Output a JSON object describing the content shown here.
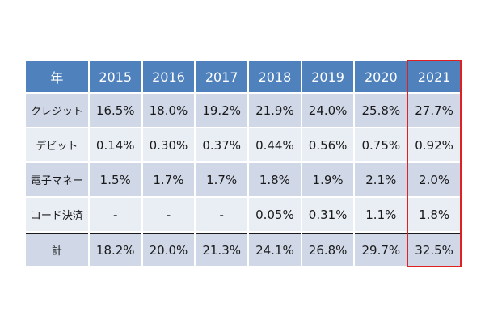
{
  "chart_data": {
    "type": "table",
    "header_label": "年",
    "years": [
      "2015",
      "2016",
      "2017",
      "2018",
      "2019",
      "2020",
      "2021"
    ],
    "rows": [
      {
        "label": "クレジット",
        "values": [
          "16.5%",
          "18.0%",
          "19.2%",
          "21.9%",
          "24.0%",
          "25.8%",
          "27.7%"
        ]
      },
      {
        "label": "デビット",
        "values": [
          "0.14%",
          "0.30%",
          "0.37%",
          "0.44%",
          "0.56%",
          "0.75%",
          "0.92%"
        ]
      },
      {
        "label": "電子マネー",
        "values": [
          "1.5%",
          "1.7%",
          "1.7%",
          "1.8%",
          "1.9%",
          "2.1%",
          "2.0%"
        ]
      },
      {
        "label": "コード決済",
        "values": [
          "-",
          "-",
          "-",
          "0.05%",
          "0.31%",
          "1.1%",
          "1.8%"
        ]
      }
    ],
    "total": {
      "label": "計",
      "values": [
        "18.2%",
        "20.0%",
        "21.3%",
        "24.1%",
        "26.8%",
        "29.7%",
        "32.5%"
      ]
    },
    "highlighted_year": "2021"
  },
  "colors": {
    "header_bg": "#4f81bd",
    "row_dark": "#d0d8e8",
    "row_light": "#e9edf4",
    "highlight": "#e02020"
  }
}
